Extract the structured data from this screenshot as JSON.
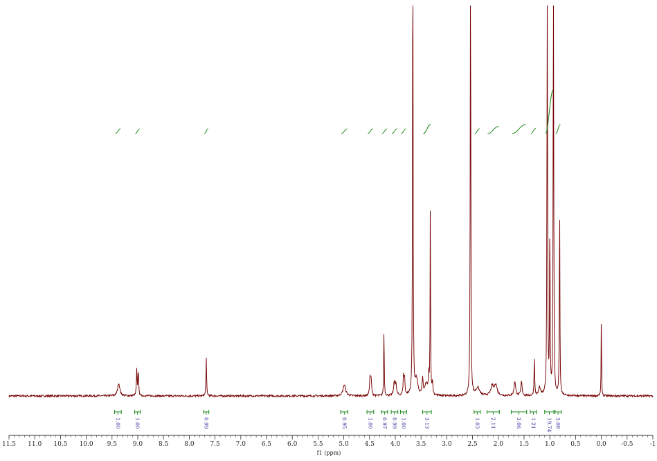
{
  "chart_data": {
    "type": "line",
    "title": "",
    "xlabel": "f1 (ppm)",
    "ylabel": "",
    "xlim": [
      11.5,
      -1.0
    ],
    "x_reversed": true,
    "grid": false,
    "legend": "none",
    "spectrum_color": "#7a0a0a",
    "integral_color": "#1c8a1c",
    "integral_label_color": "#1f1f8f",
    "x_ticks": [
      {
        "value": 11.5,
        "label": "11.5"
      },
      {
        "value": 11.0,
        "label": "11.0"
      },
      {
        "value": 10.5,
        "label": "10.5"
      },
      {
        "value": 10.0,
        "label": "10.0"
      },
      {
        "value": 9.5,
        "label": "9.5"
      },
      {
        "value": 9.0,
        "label": "9.0"
      },
      {
        "value": 8.5,
        "label": "8.5"
      },
      {
        "value": 8.0,
        "label": "8.0"
      },
      {
        "value": 7.5,
        "label": "7.5"
      },
      {
        "value": 7.0,
        "label": "7.0"
      },
      {
        "value": 6.5,
        "label": "6.5"
      },
      {
        "value": 6.0,
        "label": "6.0"
      },
      {
        "value": 5.5,
        "label": "5.5"
      },
      {
        "value": 5.0,
        "label": "5.0"
      },
      {
        "value": 4.5,
        "label": "4.5"
      },
      {
        "value": 4.0,
        "label": "4.0"
      },
      {
        "value": 3.5,
        "label": "3.5"
      },
      {
        "value": 3.0,
        "label": "3.0"
      },
      {
        "value": 2.5,
        "label": "2.5"
      },
      {
        "value": 2.0,
        "label": "2.0"
      },
      {
        "value": 1.5,
        "label": "1.5"
      },
      {
        "value": 1.0,
        "label": "1.0"
      },
      {
        "value": 0.5,
        "label": "0.5"
      },
      {
        "value": 0.0,
        "label": "0.0"
      },
      {
        "value": -0.5,
        "label": "-0.5"
      },
      {
        "value": -1.0,
        "label": "-1"
      }
    ],
    "peaks": [
      {
        "ppm": 9.37,
        "height": 0.04,
        "width": 0.025
      },
      {
        "ppm": 9.02,
        "height": 0.08,
        "width": 0.008
      },
      {
        "ppm": 8.99,
        "height": 0.08,
        "width": 0.008
      },
      {
        "ppm": 7.67,
        "height": 0.12,
        "width": 0.007
      },
      {
        "ppm": 4.99,
        "height": 0.035,
        "width": 0.03
      },
      {
        "ppm": 4.49,
        "height": 0.055,
        "width": 0.012
      },
      {
        "ppm": 4.47,
        "height": 0.045,
        "width": 0.012
      },
      {
        "ppm": 4.22,
        "height": 0.21,
        "width": 0.006
      },
      {
        "ppm": 4.02,
        "height": 0.04,
        "width": 0.015
      },
      {
        "ppm": 3.99,
        "height": 0.035,
        "width": 0.015
      },
      {
        "ppm": 3.84,
        "height": 0.06,
        "width": 0.01
      },
      {
        "ppm": 3.82,
        "height": 0.05,
        "width": 0.01
      },
      {
        "ppm": 3.66,
        "height": 1.6,
        "width": 0.006
      },
      {
        "ppm": 3.59,
        "height": 0.05,
        "width": 0.03
      },
      {
        "ppm": 3.47,
        "height": 0.05,
        "width": 0.012
      },
      {
        "ppm": 3.4,
        "height": 0.035,
        "width": 0.03
      },
      {
        "ppm": 3.35,
        "height": 0.06,
        "width": 0.01
      },
      {
        "ppm": 3.32,
        "height": 0.6,
        "width": 0.005
      },
      {
        "ppm": 3.28,
        "height": 0.04,
        "width": 0.01
      },
      {
        "ppm": 2.54,
        "height": 1.6,
        "width": 0.006
      },
      {
        "ppm": 2.4,
        "height": 0.025,
        "width": 0.04
      },
      {
        "ppm": 2.12,
        "height": 0.03,
        "width": 0.03
      },
      {
        "ppm": 2.05,
        "height": 0.035,
        "width": 0.03
      },
      {
        "ppm": 1.68,
        "height": 0.045,
        "width": 0.018
      },
      {
        "ppm": 1.55,
        "height": 0.045,
        "width": 0.014
      },
      {
        "ppm": 1.3,
        "height": 0.12,
        "width": 0.007
      },
      {
        "ppm": 1.2,
        "height": 0.025,
        "width": 0.02
      },
      {
        "ppm": 1.05,
        "height": 1.6,
        "width": 0.006
      },
      {
        "ppm": 1.0,
        "height": 0.55,
        "width": 0.006
      },
      {
        "ppm": 0.93,
        "height": 1.6,
        "width": 0.006
      },
      {
        "ppm": 0.81,
        "height": 0.62,
        "width": 0.006
      },
      {
        "ppm": 0.0,
        "height": 0.24,
        "width": 0.005
      }
    ],
    "integrals": [
      {
        "from": 9.45,
        "to": 9.32,
        "value": "1.00"
      },
      {
        "from": 9.06,
        "to": 8.95,
        "value": "1.00"
      },
      {
        "from": 7.72,
        "to": 7.62,
        "value": "0.99"
      },
      {
        "from": 5.06,
        "to": 4.92,
        "value": "0.95"
      },
      {
        "from": 4.55,
        "to": 4.42,
        "value": "1.00"
      },
      {
        "from": 4.27,
        "to": 4.15,
        "value": "0.97"
      },
      {
        "from": 4.08,
        "to": 3.95,
        "value": "0.99"
      },
      {
        "from": 3.9,
        "to": 3.78,
        "value": "1.00"
      },
      {
        "from": 3.47,
        "to": 3.3,
        "value": "3.13"
      },
      {
        "from": 2.47,
        "to": 2.35,
        "value": "1.03"
      },
      {
        "from": 2.22,
        "to": 1.98,
        "value": "2.11"
      },
      {
        "from": 1.75,
        "to": 1.45,
        "value": "3.06"
      },
      {
        "from": 1.38,
        "to": 1.26,
        "value": "1.21"
      },
      {
        "from": 1.1,
        "to": 0.92,
        "value": "19.74"
      },
      {
        "from": 0.9,
        "to": 0.78,
        "value": "3.08"
      }
    ]
  }
}
